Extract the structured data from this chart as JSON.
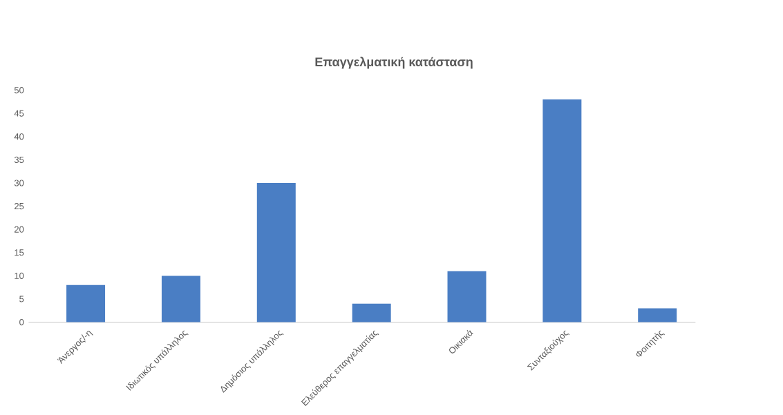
{
  "chart_data": {
    "type": "bar",
    "title": "Επαγγελματική κατάσταση",
    "categories": [
      "Άνεργος/-η",
      "Ιδιωτικός υπάλληλος",
      "Δημόσιος υπάλληλος",
      "Ελεύθερος επαγγελματίας",
      "Οικιακά",
      "Συνταξιούχος",
      "Φοιτητής"
    ],
    "values": [
      8,
      10,
      30,
      4,
      11,
      48,
      3
    ],
    "color": "#4a7ec4",
    "ylim": [
      0,
      50
    ],
    "yticks": [
      0,
      5,
      10,
      15,
      20,
      25,
      30,
      35,
      40,
      45,
      50
    ]
  }
}
